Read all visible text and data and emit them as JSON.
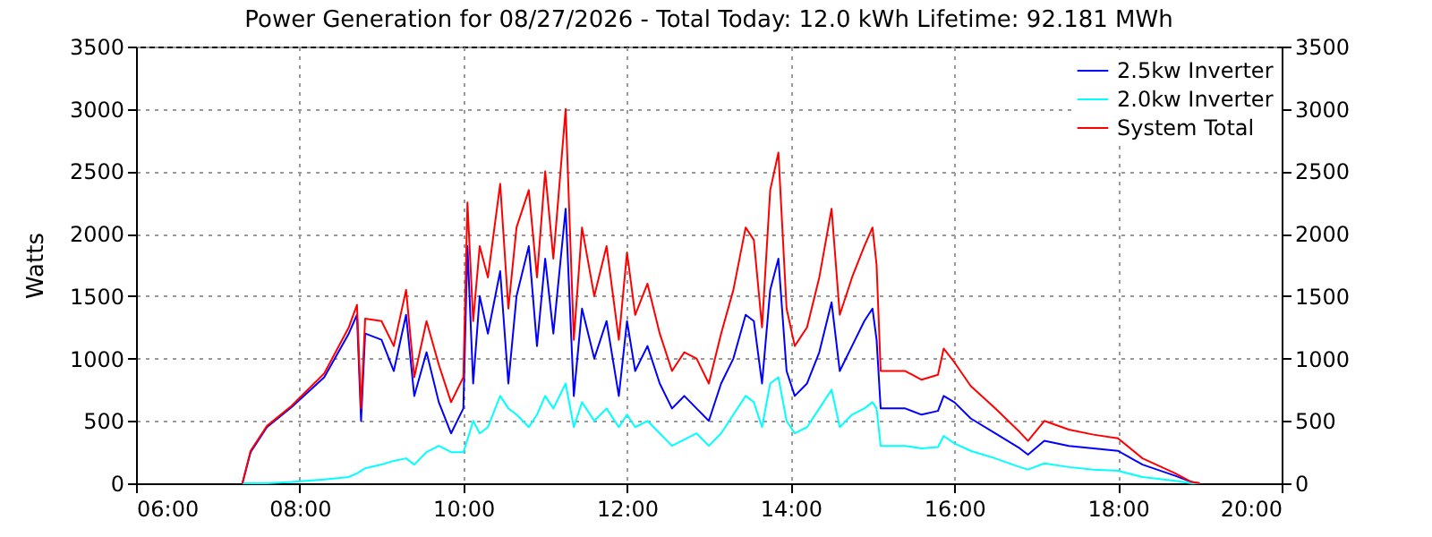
{
  "chart_data": {
    "type": "line",
    "title": "Power Generation for 08/27/2026 - Total Today: 12.0 kWh   Lifetime: 92.181 MWh",
    "ylabel": "Watts",
    "x": [
      7.3,
      7.4,
      7.6,
      7.9,
      8.3,
      8.6,
      8.7,
      8.75,
      8.8,
      9.0,
      9.15,
      9.3,
      9.4,
      9.55,
      9.7,
      9.85,
      10.0,
      10.05,
      10.12,
      10.2,
      10.3,
      10.45,
      10.55,
      10.65,
      10.8,
      10.9,
      11.0,
      11.1,
      11.25,
      11.35,
      11.45,
      11.6,
      11.75,
      11.9,
      12.0,
      12.1,
      12.25,
      12.4,
      12.55,
      12.7,
      12.85,
      13.0,
      13.15,
      13.3,
      13.45,
      13.55,
      13.65,
      13.75,
      13.85,
      13.95,
      14.05,
      14.2,
      14.35,
      14.5,
      14.6,
      14.75,
      14.9,
      15.0,
      15.05,
      15.1,
      15.4,
      15.6,
      15.8,
      15.87,
      16.0,
      16.2,
      16.5,
      16.8,
      16.9,
      17.1,
      17.4,
      17.7,
      18.0,
      18.3,
      18.7,
      18.9,
      19.0
    ],
    "series": [
      {
        "name": "2.5kw Inverter",
        "color": "#0000ff",
        "values": [
          0,
          250,
          450,
          610,
          850,
          1200,
          1350,
          500,
          1200,
          1150,
          900,
          1350,
          700,
          1050,
          650,
          400,
          600,
          1900,
          800,
          1500,
          1200,
          1700,
          800,
          1500,
          1900,
          1100,
          1800,
          1200,
          2200,
          700,
          1400,
          1000,
          1300,
          700,
          1300,
          900,
          1100,
          800,
          600,
          700,
          600,
          500,
          800,
          1000,
          1350,
          1300,
          800,
          1550,
          1800,
          900,
          700,
          800,
          1050,
          1450,
          900,
          1100,
          1300,
          1400,
          1150,
          600,
          600,
          550,
          580,
          700,
          650,
          520,
          400,
          280,
          230,
          340,
          300,
          280,
          260,
          150,
          60,
          10,
          0
        ]
      },
      {
        "name": "2.0kw Inverter",
        "color": "#00ffff",
        "values": [
          0,
          0,
          0,
          10,
          30,
          50,
          80,
          100,
          120,
          150,
          180,
          200,
          150,
          250,
          300,
          250,
          250,
          350,
          500,
          400,
          450,
          700,
          600,
          550,
          450,
          550,
          700,
          600,
          800,
          450,
          650,
          500,
          600,
          450,
          550,
          450,
          500,
          400,
          300,
          350,
          400,
          300,
          400,
          550,
          700,
          650,
          450,
          800,
          850,
          500,
          400,
          450,
          600,
          750,
          450,
          550,
          600,
          650,
          600,
          300,
          300,
          280,
          290,
          380,
          320,
          260,
          200,
          130,
          110,
          160,
          130,
          110,
          100,
          50,
          20,
          0,
          0
        ]
      },
      {
        "name": "System Total",
        "color": "#ff0000",
        "values": [
          0,
          260,
          460,
          620,
          880,
          1250,
          1430,
          600,
          1320,
          1300,
          1100,
          1550,
          850,
          1300,
          950,
          650,
          850,
          2250,
          1300,
          1900,
          1650,
          2400,
          1400,
          2050,
          2350,
          1650,
          2500,
          1800,
          3000,
          1150,
          2050,
          1500,
          1900,
          1150,
          1850,
          1350,
          1600,
          1200,
          900,
          1050,
          1000,
          800,
          1200,
          1550,
          2050,
          1950,
          1250,
          2350,
          2650,
          1400,
          1100,
          1250,
          1650,
          2200,
          1350,
          1650,
          1900,
          2050,
          1750,
          900,
          900,
          830,
          870,
          1080,
          970,
          780,
          600,
          410,
          340,
          500,
          430,
          390,
          360,
          200,
          80,
          10,
          0
        ]
      }
    ],
    "xlim": [
      6,
      20
    ],
    "xticks": [
      {
        "value": 6,
        "label": "06:00"
      },
      {
        "value": 8,
        "label": "08:00"
      },
      {
        "value": 10,
        "label": "10:00"
      },
      {
        "value": 12,
        "label": "12:00"
      },
      {
        "value": 14,
        "label": "14:00"
      },
      {
        "value": 16,
        "label": "16:00"
      },
      {
        "value": 18,
        "label": "18:00"
      },
      {
        "value": 20,
        "label": "20:00"
      }
    ],
    "ylim": [
      0,
      3500
    ],
    "yticks": [
      0,
      500,
      1000,
      1500,
      2000,
      2500,
      3000,
      3500
    ],
    "y2lim": [
      0,
      3500
    ],
    "y2ticks": [
      0,
      500,
      1000,
      1500,
      2000,
      2500,
      3000,
      3500
    ],
    "grid": true,
    "legend": "top right",
    "line_style": "solid",
    "marker": "none"
  }
}
